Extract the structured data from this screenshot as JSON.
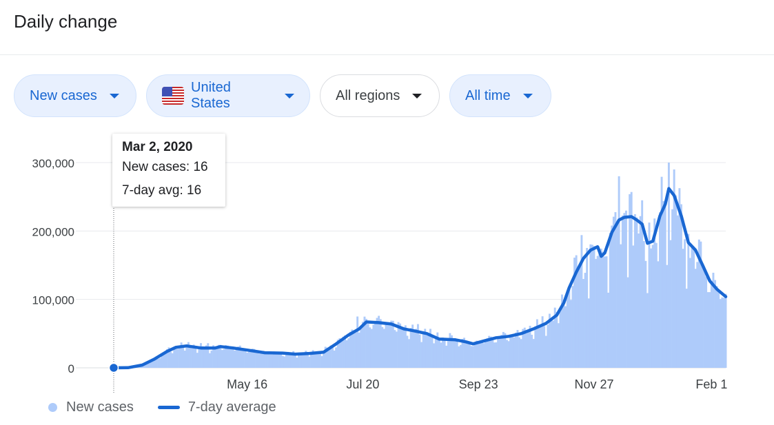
{
  "page": {
    "title": "Daily change"
  },
  "filters": {
    "metric": "New cases",
    "country": "United States",
    "regions": "All regions",
    "time": "All time"
  },
  "tooltip": {
    "date": "Mar 2, 2020",
    "new_cases_label": "New cases: ",
    "new_cases_value": "16",
    "avg_label": "7-day avg: ",
    "avg_value": "16"
  },
  "legend": {
    "bars": "New cases",
    "line": "7-day average"
  },
  "colors": {
    "bars": "#aecbfa",
    "line": "#1967d2",
    "accent": "#1967d2",
    "chip_bg": "#e8f0fe"
  },
  "chart_data": {
    "type": "bar",
    "title": "",
    "xlabel": "",
    "ylabel": "",
    "ylim": [
      0,
      300000
    ],
    "yticks": [
      0,
      100000,
      200000,
      300000
    ],
    "ytick_labels": [
      "0",
      "100,000",
      "200,000",
      "300,000"
    ],
    "x_start": "2020-03-02",
    "x_end": "2021-02-09",
    "xticks": [
      {
        "date": "2020-05-16",
        "label": "May 16"
      },
      {
        "date": "2020-07-20",
        "label": "Jul 20"
      },
      {
        "date": "2020-09-23",
        "label": "Sep 23"
      },
      {
        "date": "2020-11-27",
        "label": "Nov 27"
      },
      {
        "date": "2021-02-01",
        "label": "Feb 1"
      }
    ],
    "highlight": {
      "date": "2020-03-02",
      "value": 16
    },
    "series": [
      {
        "name": "7-day average",
        "style": "line",
        "points": [
          [
            "2020-03-02",
            16
          ],
          [
            "2020-03-10",
            200
          ],
          [
            "2020-03-18",
            4000
          ],
          [
            "2020-03-25",
            13000
          ],
          [
            "2020-04-01",
            24000
          ],
          [
            "2020-04-06",
            30000
          ],
          [
            "2020-04-12",
            32000
          ],
          [
            "2020-04-20",
            29000
          ],
          [
            "2020-04-28",
            29000
          ],
          [
            "2020-05-01",
            31000
          ],
          [
            "2020-05-08",
            29000
          ],
          [
            "2020-05-16",
            26000
          ],
          [
            "2020-05-26",
            22000
          ],
          [
            "2020-06-05",
            21500
          ],
          [
            "2020-06-12",
            20000
          ],
          [
            "2020-06-20",
            21000
          ],
          [
            "2020-06-28",
            23000
          ],
          [
            "2020-07-05",
            35000
          ],
          [
            "2020-07-12",
            48000
          ],
          [
            "2020-07-18",
            57000
          ],
          [
            "2020-07-22",
            67000
          ],
          [
            "2020-07-29",
            66000
          ],
          [
            "2020-08-05",
            64000
          ],
          [
            "2020-08-12",
            57000
          ],
          [
            "2020-08-18",
            54000
          ],
          [
            "2020-08-25",
            50000
          ],
          [
            "2020-09-01",
            42000
          ],
          [
            "2020-09-10",
            41000
          ],
          [
            "2020-09-16",
            38000
          ],
          [
            "2020-09-20",
            35000
          ],
          [
            "2020-09-27",
            40000
          ],
          [
            "2020-10-03",
            44000
          ],
          [
            "2020-10-10",
            46000
          ],
          [
            "2020-10-17",
            50000
          ],
          [
            "2020-10-24",
            57000
          ],
          [
            "2020-10-31",
            65000
          ],
          [
            "2020-11-06",
            77000
          ],
          [
            "2020-11-10",
            95000
          ],
          [
            "2020-11-13",
            117000
          ],
          [
            "2020-11-17",
            140000
          ],
          [
            "2020-11-21",
            160000
          ],
          [
            "2020-11-25",
            172000
          ],
          [
            "2020-11-29",
            177000
          ],
          [
            "2020-12-01",
            163000
          ],
          [
            "2020-12-03",
            168000
          ],
          [
            "2020-12-07",
            198000
          ],
          [
            "2020-12-11",
            216000
          ],
          [
            "2020-12-14",
            220000
          ],
          [
            "2020-12-18",
            221000
          ],
          [
            "2020-12-21",
            216000
          ],
          [
            "2020-12-24",
            210000
          ],
          [
            "2020-12-27",
            182000
          ],
          [
            "2020-12-30",
            185000
          ],
          [
            "2021-01-03",
            222000
          ],
          [
            "2021-01-06",
            239000
          ],
          [
            "2021-01-08",
            262000
          ],
          [
            "2021-01-11",
            252000
          ],
          [
            "2021-01-15",
            222000
          ],
          [
            "2021-01-19",
            183000
          ],
          [
            "2021-01-23",
            172000
          ],
          [
            "2021-01-27",
            150000
          ],
          [
            "2021-01-31",
            127000
          ],
          [
            "2021-02-04",
            115000
          ],
          [
            "2021-02-09",
            104000
          ]
        ]
      },
      {
        "name": "New cases",
        "style": "bar",
        "note": "daily bars approximately follow the 7-day average with weekday noise; notable peaks",
        "peaks": [
          [
            "2020-04-24",
            36000
          ],
          [
            "2020-07-17",
            75000
          ],
          [
            "2020-11-20",
            194000
          ],
          [
            "2020-12-11",
            280000
          ],
          [
            "2020-12-18",
            257000
          ],
          [
            "2021-01-08",
            300000
          ]
        ]
      }
    ]
  }
}
